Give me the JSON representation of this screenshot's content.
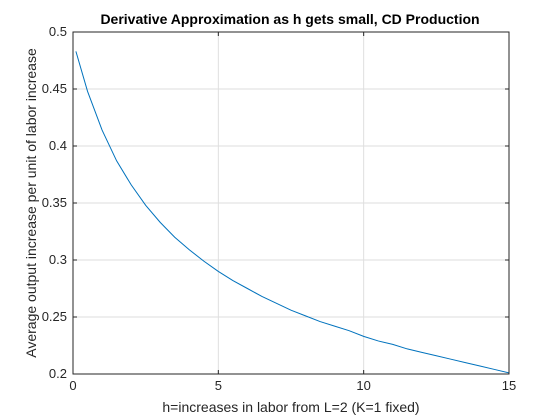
{
  "chart_data": {
    "type": "line",
    "title": "Derivative Approximation as h gets small, CD Production",
    "xlabel": "h=increases in labor from L=2 (K=1 fixed)",
    "ylabel": "Average output increase per unit of labor increase",
    "xlim": [
      0,
      15
    ],
    "ylim": [
      0.2,
      0.5
    ],
    "xticks": [
      0,
      5,
      10,
      15
    ],
    "xtick_labels": [
      "0",
      "5",
      "10",
      "15"
    ],
    "yticks": [
      0.2,
      0.25,
      0.3,
      0.35,
      0.4,
      0.45,
      0.5
    ],
    "ytick_labels": [
      "0.2",
      "0.25",
      "0.3",
      "0.35",
      "0.4",
      "0.45",
      "0.5"
    ],
    "grid": true,
    "series": [
      {
        "color": "#0072BD",
        "x": [
          0.1,
          0.5,
          1,
          1.5,
          2,
          2.5,
          3,
          3.5,
          4,
          4.5,
          5,
          5.5,
          6,
          6.5,
          7,
          7.5,
          8,
          8.5,
          9,
          9.5,
          10,
          10.5,
          11,
          11.5,
          12,
          12.5,
          13,
          13.5,
          14,
          14.5,
          15
        ],
        "y": [
          0.483,
          0.448,
          0.414,
          0.387,
          0.366,
          0.348,
          0.333,
          0.32,
          0.309,
          0.299,
          0.29,
          0.282,
          0.275,
          0.268,
          0.262,
          0.256,
          0.251,
          0.246,
          0.242,
          0.238,
          0.233,
          0.229,
          0.226,
          0.222,
          0.219,
          0.216,
          0.213,
          0.21,
          0.207,
          0.204,
          0.201
        ]
      }
    ]
  }
}
